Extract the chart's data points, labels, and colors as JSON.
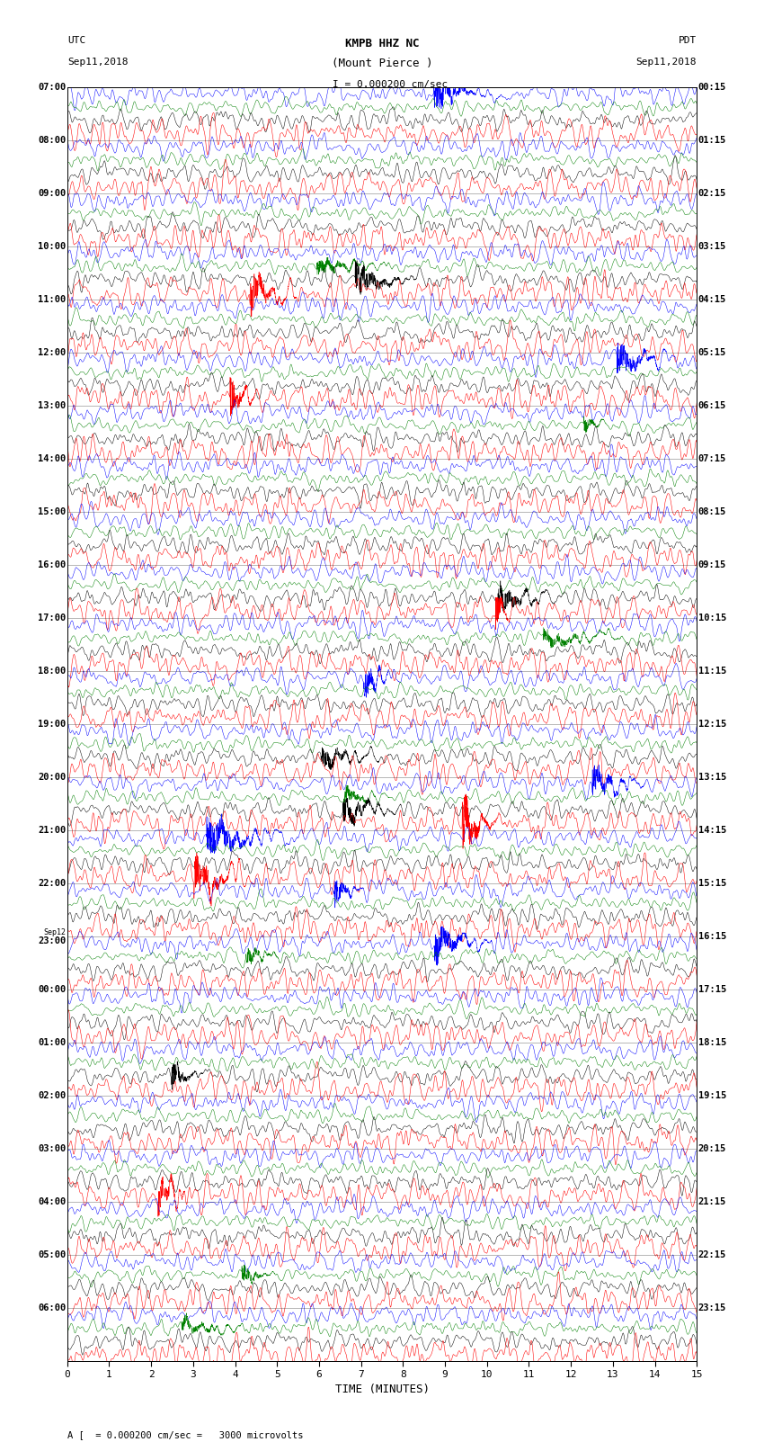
{
  "title_line1": "KMPB HHZ NC",
  "title_line2": "(Mount Pierce )",
  "title_line3": "I = 0.000200 cm/sec",
  "left_label_top": "UTC",
  "left_label_date": "Sep11,2018",
  "right_label_top": "PDT",
  "right_label_date": "Sep11,2018",
  "xlabel": "TIME (MINUTES)",
  "bottom_note": "= 0.000200 cm/sec =   3000 microvolts",
  "utc_times_left": [
    "07:00",
    "08:00",
    "09:00",
    "10:00",
    "11:00",
    "12:00",
    "13:00",
    "14:00",
    "15:00",
    "16:00",
    "17:00",
    "18:00",
    "19:00",
    "20:00",
    "21:00",
    "22:00",
    "23:00",
    "00:00",
    "01:00",
    "02:00",
    "03:00",
    "04:00",
    "05:00",
    "06:00"
  ],
  "pdt_times_right": [
    "00:15",
    "01:15",
    "02:15",
    "03:15",
    "04:15",
    "05:15",
    "06:15",
    "07:15",
    "08:15",
    "09:15",
    "10:15",
    "11:15",
    "12:15",
    "13:15",
    "14:15",
    "15:15",
    "16:15",
    "17:15",
    "18:15",
    "19:15",
    "20:15",
    "21:15",
    "22:15",
    "23:15"
  ],
  "sep12_row": 17,
  "colors_order": [
    "blue",
    "green",
    "black",
    "red"
  ],
  "n_rows": 24,
  "n_traces_per_row": 4,
  "xmin": 0,
  "xmax": 15,
  "bg_color": "white",
  "seed": 12345
}
